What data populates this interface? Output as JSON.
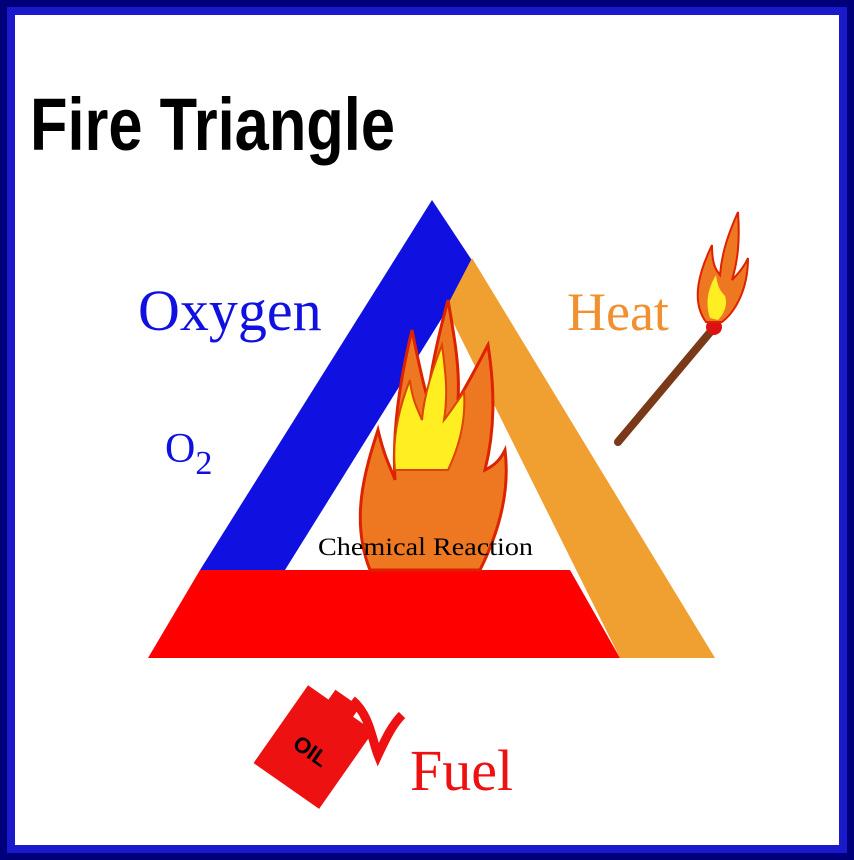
{
  "title": "Fire Triangle",
  "oxygen": {
    "label": "Oxygen",
    "formula": {
      "symbol": "O",
      "subscript": "2"
    }
  },
  "heat": {
    "label": "Heat"
  },
  "fuel": {
    "label": "Fuel",
    "can_label": "OIL"
  },
  "center": {
    "label": "Chemical Reaction"
  }
}
